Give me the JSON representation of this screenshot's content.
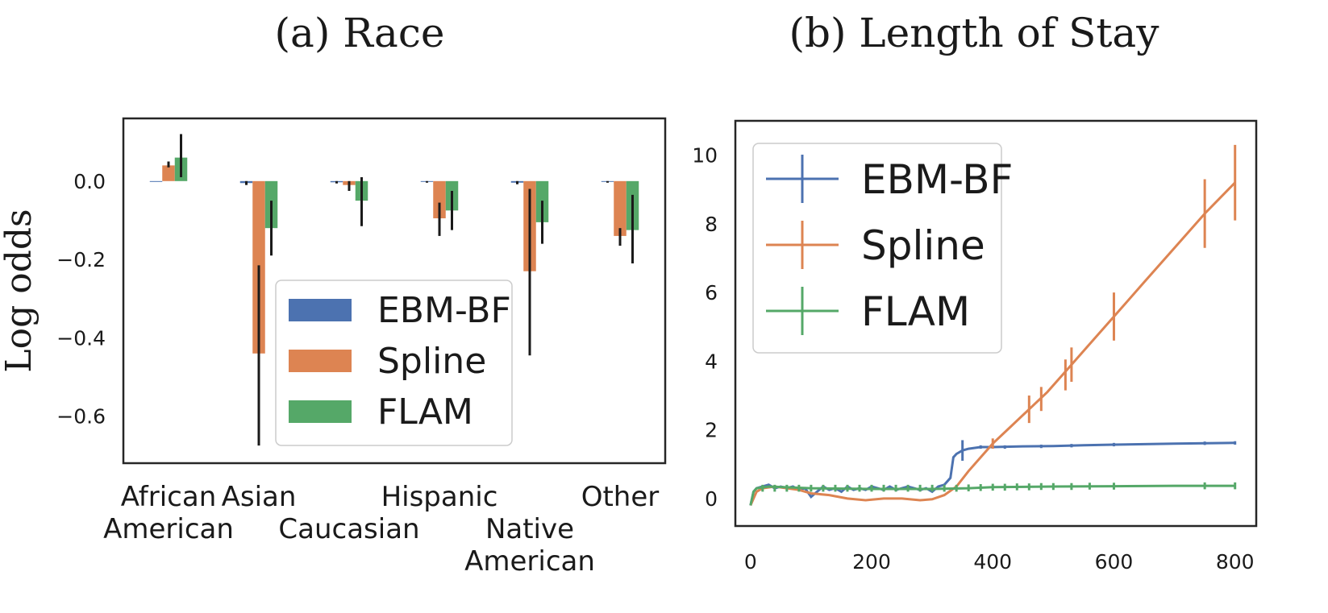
{
  "chart_data": [
    {
      "type": "bar",
      "title": "(a) Race",
      "ylabel": "Log odds",
      "categories": [
        "African American",
        "Asian",
        "Caucasian",
        "Hispanic",
        "Native American",
        "Other"
      ],
      "category_lines": [
        [
          "African",
          "American"
        ],
        [
          "Asian"
        ],
        [
          "Caucasian"
        ],
        [
          "Hispanic"
        ],
        [
          "Native",
          "American"
        ],
        [
          "Other"
        ]
      ],
      "ylim": [
        -0.72,
        0.16
      ],
      "yticks": [
        0.0,
        -0.2,
        -0.4,
        -0.6
      ],
      "ytick_labels": [
        "0.0",
        "−0.2",
        "−0.4",
        "−0.6"
      ],
      "series": [
        {
          "name": "EBM-BF",
          "color": "#4c72b0",
          "values": [
            0.0,
            -0.005,
            -0.003,
            -0.002,
            -0.004,
            -0.002
          ],
          "err_low": [
            0.0,
            -0.01,
            -0.006,
            -0.004,
            -0.008,
            -0.004
          ],
          "err_high": [
            0.0,
            0.0,
            0.0,
            0.0,
            0.0,
            0.0
          ]
        },
        {
          "name": "Spline",
          "color": "#dd8452",
          "values": [
            0.04,
            -0.44,
            -0.01,
            -0.095,
            -0.23,
            -0.14
          ],
          "err_low": [
            0.035,
            -0.675,
            -0.025,
            -0.14,
            -0.445,
            -0.165
          ],
          "err_high": [
            0.05,
            -0.215,
            0.0,
            -0.055,
            -0.02,
            -0.12
          ]
        },
        {
          "name": "FLAM",
          "color": "#55a868",
          "values": [
            0.06,
            -0.12,
            -0.05,
            -0.075,
            -0.105,
            -0.125
          ],
          "err_low": [
            0.01,
            -0.19,
            -0.115,
            -0.125,
            -0.16,
            -0.21
          ],
          "err_high": [
            0.12,
            -0.05,
            0.01,
            -0.025,
            -0.05,
            -0.035
          ]
        }
      ],
      "legend_position": "lower-right",
      "grid": false
    },
    {
      "type": "line",
      "title": "(b) Length of Stay",
      "xlim": [
        -25,
        835
      ],
      "ylim": [
        -0.8,
        11.0
      ],
      "xticks": [
        0,
        200,
        400,
        600,
        800
      ],
      "yticks": [
        0,
        2,
        4,
        6,
        8,
        10
      ],
      "series": [
        {
          "name": "EBM-BF",
          "color": "#4c72b0",
          "points": [
            [
              0,
              -0.2
            ],
            [
              5,
              0.2
            ],
            [
              10,
              0.3
            ],
            [
              20,
              0.35
            ],
            [
              30,
              0.4
            ],
            [
              40,
              0.3
            ],
            [
              50,
              0.35
            ],
            [
              60,
              0.3
            ],
            [
              70,
              0.35
            ],
            [
              80,
              0.25
            ],
            [
              90,
              0.3
            ],
            [
              100,
              0.05
            ],
            [
              110,
              0.2
            ],
            [
              120,
              0.35
            ],
            [
              130,
              0.25
            ],
            [
              140,
              0.3
            ],
            [
              150,
              0.2
            ],
            [
              160,
              0.35
            ],
            [
              170,
              0.25
            ],
            [
              180,
              0.3
            ],
            [
              190,
              0.25
            ],
            [
              200,
              0.35
            ],
            [
              210,
              0.3
            ],
            [
              220,
              0.25
            ],
            [
              230,
              0.35
            ],
            [
              240,
              0.25
            ],
            [
              250,
              0.3
            ],
            [
              260,
              0.35
            ],
            [
              270,
              0.3
            ],
            [
              280,
              0.25
            ],
            [
              290,
              0.3
            ],
            [
              300,
              0.2
            ],
            [
              310,
              0.35
            ],
            [
              320,
              0.4
            ],
            [
              330,
              0.6
            ],
            [
              335,
              1.2
            ],
            [
              340,
              1.3
            ],
            [
              350,
              1.4
            ],
            [
              360,
              1.45
            ],
            [
              380,
              1.5
            ],
            [
              400,
              1.5
            ],
            [
              450,
              1.52
            ],
            [
              500,
              1.53
            ],
            [
              550,
              1.55
            ],
            [
              600,
              1.57
            ],
            [
              700,
              1.6
            ],
            [
              800,
              1.62
            ]
          ],
          "errbars": [
            [
              350,
              1.4,
              0.3
            ],
            [
              380,
              1.5,
              0.05
            ],
            [
              420,
              1.5,
              0.05
            ],
            [
              480,
              1.52,
              0.05
            ],
            [
              530,
              1.54,
              0.05
            ],
            [
              600,
              1.57,
              0.05
            ],
            [
              750,
              1.61,
              0.05
            ],
            [
              800,
              1.62,
              0.05
            ]
          ]
        },
        {
          "name": "Spline",
          "color": "#dd8452",
          "points": [
            [
              0,
              -0.2
            ],
            [
              10,
              0.2
            ],
            [
              20,
              0.3
            ],
            [
              40,
              0.35
            ],
            [
              60,
              0.3
            ],
            [
              80,
              0.25
            ],
            [
              100,
              0.15
            ],
            [
              130,
              0.1
            ],
            [
              160,
              0.0
            ],
            [
              190,
              -0.05
            ],
            [
              220,
              0.0
            ],
            [
              250,
              0.0
            ],
            [
              280,
              -0.05
            ],
            [
              300,
              -0.02
            ],
            [
              320,
              0.1
            ],
            [
              340,
              0.35
            ],
            [
              360,
              0.8
            ],
            [
              380,
              1.2
            ],
            [
              400,
              1.6
            ],
            [
              430,
              2.1
            ],
            [
              460,
              2.6
            ],
            [
              490,
              3.1
            ],
            [
              520,
              3.7
            ],
            [
              560,
              4.5
            ],
            [
              600,
              5.3
            ],
            [
              650,
              6.3
            ],
            [
              700,
              7.3
            ],
            [
              750,
              8.3
            ],
            [
              800,
              9.2
            ]
          ],
          "errbars": [
            [
              400,
              1.6,
              0.15
            ],
            [
              460,
              2.6,
              0.4
            ],
            [
              480,
              2.9,
              0.35
            ],
            [
              520,
              3.6,
              0.45
            ],
            [
              530,
              3.9,
              0.5
            ],
            [
              600,
              5.3,
              0.7
            ],
            [
              750,
              8.3,
              1.0
            ],
            [
              800,
              9.2,
              1.1
            ]
          ]
        },
        {
          "name": "FLAM",
          "color": "#55a868",
          "points": [
            [
              0,
              -0.2
            ],
            [
              5,
              0.2
            ],
            [
              10,
              0.3
            ],
            [
              30,
              0.35
            ],
            [
              100,
              0.3
            ],
            [
              200,
              0.28
            ],
            [
              300,
              0.28
            ],
            [
              360,
              0.3
            ],
            [
              400,
              0.33
            ],
            [
              500,
              0.35
            ],
            [
              600,
              0.36
            ],
            [
              700,
              0.37
            ],
            [
              800,
              0.37
            ]
          ],
          "errbars": [
            [
              20,
              0.3,
              0.1
            ],
            [
              40,
              0.3,
              0.1
            ],
            [
              60,
              0.3,
              0.1
            ],
            [
              80,
              0.3,
              0.1
            ],
            [
              100,
              0.3,
              0.1
            ],
            [
              120,
              0.3,
              0.1
            ],
            [
              140,
              0.3,
              0.1
            ],
            [
              160,
              0.3,
              0.1
            ],
            [
              180,
              0.3,
              0.1
            ],
            [
              200,
              0.3,
              0.1
            ],
            [
              220,
              0.3,
              0.1
            ],
            [
              240,
              0.3,
              0.1
            ],
            [
              260,
              0.3,
              0.1
            ],
            [
              280,
              0.3,
              0.1
            ],
            [
              300,
              0.3,
              0.1
            ],
            [
              320,
              0.3,
              0.1
            ],
            [
              340,
              0.3,
              0.1
            ],
            [
              360,
              0.31,
              0.1
            ],
            [
              380,
              0.32,
              0.1
            ],
            [
              400,
              0.33,
              0.1
            ],
            [
              420,
              0.33,
              0.1
            ],
            [
              440,
              0.34,
              0.1
            ],
            [
              460,
              0.34,
              0.1
            ],
            [
              480,
              0.35,
              0.1
            ],
            [
              500,
              0.35,
              0.1
            ],
            [
              530,
              0.35,
              0.1
            ],
            [
              560,
              0.36,
              0.1
            ],
            [
              600,
              0.36,
              0.1
            ],
            [
              750,
              0.37,
              0.1
            ],
            [
              800,
              0.37,
              0.1
            ]
          ]
        }
      ],
      "legend_position": "top-left",
      "grid": false
    }
  ]
}
